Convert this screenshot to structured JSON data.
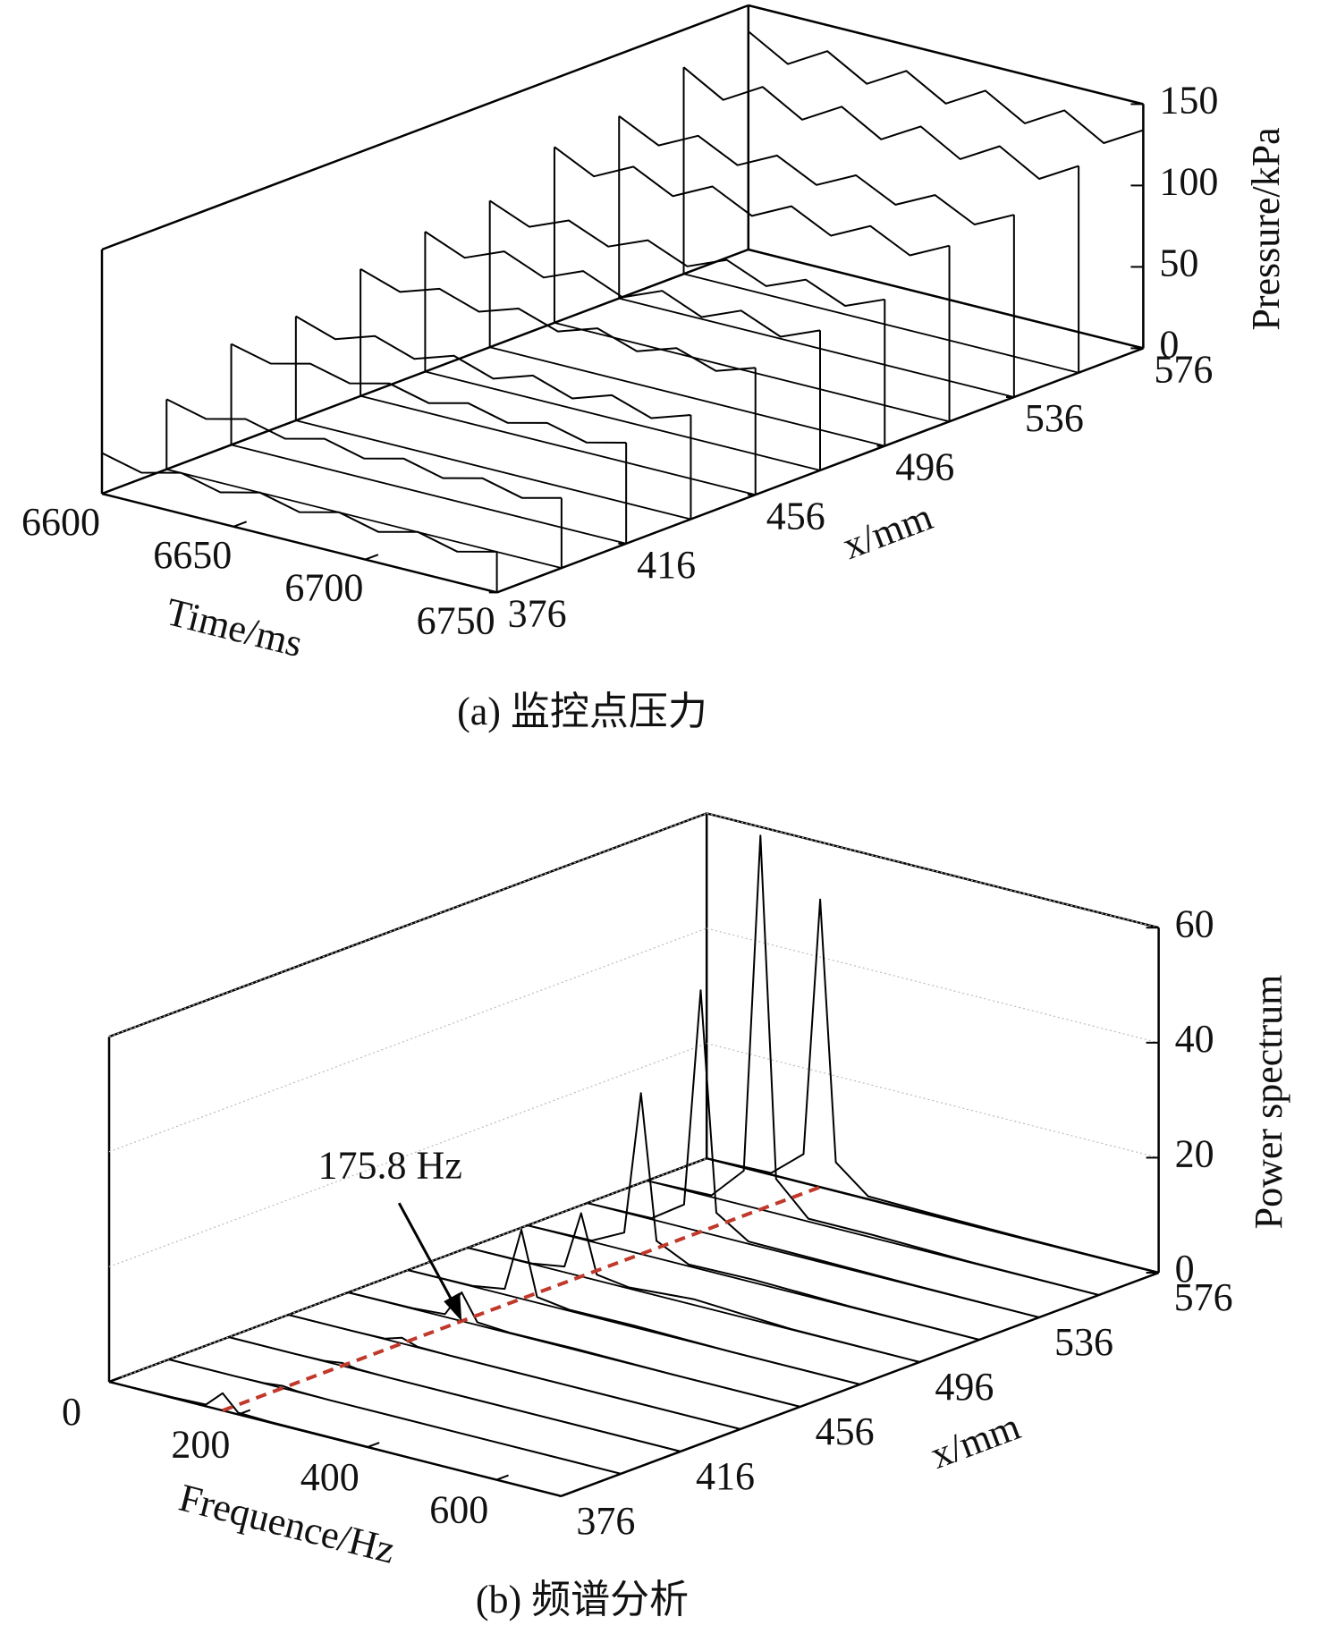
{
  "chart_data": [
    {
      "type": "waterfall",
      "title": "(a) 监控点压力",
      "xlabel": "Time/ms",
      "ylabel": "x/mm",
      "zlabel": "Pressure/kPa",
      "xlim": [
        6600,
        6750
      ],
      "xticks": [
        6600,
        6650,
        6700,
        6750
      ],
      "ylim": [
        376,
        576
      ],
      "yticks": [
        376,
        416,
        456,
        496,
        536,
        576
      ],
      "zlim": [
        0,
        150
      ],
      "zticks": [
        0,
        50,
        100,
        150
      ],
      "grid": false,
      "color": "#000000",
      "x": [
        6600,
        6615,
        6630,
        6645,
        6660,
        6675,
        6690,
        6705,
        6720,
        6735,
        6750
      ],
      "series": [
        {
          "position": 376,
          "values": [
            25,
            19,
            25,
            19,
            25,
            19,
            25,
            19,
            25,
            19,
            25
          ]
        },
        {
          "position": 396,
          "values": [
            43,
            37,
            43,
            37,
            43,
            37,
            43,
            37,
            43,
            37,
            43
          ]
        },
        {
          "position": 416,
          "values": [
            62,
            56,
            62,
            56,
            62,
            56,
            62,
            56,
            62,
            56,
            62
          ]
        },
        {
          "position": 436,
          "values": [
            64,
            56,
            64,
            56,
            64,
            56,
            64,
            56,
            64,
            56,
            64
          ]
        },
        {
          "position": 456,
          "values": [
            78,
            70,
            78,
            70,
            78,
            70,
            78,
            70,
            78,
            70,
            78
          ]
        },
        {
          "position": 476,
          "values": [
            86,
            76,
            86,
            76,
            86,
            76,
            86,
            76,
            86,
            76,
            86
          ]
        },
        {
          "position": 496,
          "values": [
            90,
            80,
            90,
            80,
            90,
            80,
            90,
            80,
            90,
            80,
            90
          ]
        },
        {
          "position": 516,
          "values": [
            108,
            96,
            108,
            96,
            108,
            96,
            108,
            96,
            108,
            96,
            108
          ]
        },
        {
          "position": 536,
          "values": [
            112,
            100,
            112,
            100,
            112,
            100,
            112,
            100,
            112,
            100,
            112
          ]
        },
        {
          "position": 556,
          "values": [
            127,
            113,
            127,
            113,
            127,
            113,
            127,
            113,
            127,
            113,
            127
          ]
        },
        {
          "position": 576,
          "values": [
            134,
            120,
            134,
            120,
            134,
            120,
            134,
            120,
            134,
            120,
            134
          ]
        }
      ]
    },
    {
      "type": "waterfall",
      "title": "(b) 频谱分析",
      "xlabel": "Frequence/Hz",
      "ylabel": "x/mm",
      "zlabel": "Power spectrum",
      "xlim": [
        0,
        700
      ],
      "xticks": [
        0,
        200,
        400,
        600
      ],
      "ylim": [
        376,
        576
      ],
      "yticks": [
        376,
        416,
        456,
        496,
        536,
        576
      ],
      "zlim": [
        0,
        60
      ],
      "zticks": [
        0,
        20,
        40,
        60
      ],
      "grid": true,
      "color": "#000000",
      "annotation": {
        "text": "175.8 Hz",
        "frequency": 175.8,
        "color": "#c0392b"
      },
      "x": [
        0,
        100,
        150,
        175.8,
        200,
        250,
        350,
        500,
        700
      ],
      "series": [
        {
          "position": 376,
          "values": [
            0,
            0.1,
            0.3,
            3,
            0.3,
            0.1,
            0.1,
            0,
            0
          ]
        },
        {
          "position": 396,
          "values": [
            0,
            0,
            0.1,
            0.4,
            0.1,
            0,
            0,
            0,
            0
          ]
        },
        {
          "position": 416,
          "values": [
            0,
            0,
            0.1,
            0.5,
            0.1,
            0,
            0,
            0,
            0
          ]
        },
        {
          "position": 436,
          "values": [
            0,
            0,
            0.1,
            1,
            0.1,
            0,
            0,
            0,
            0
          ]
        },
        {
          "position": 456,
          "values": [
            0,
            0.1,
            0.5,
            5,
            0.5,
            0.1,
            0.2,
            0,
            0
          ]
        },
        {
          "position": 476,
          "values": [
            0,
            0.1,
            1,
            12,
            1,
            0.2,
            0.3,
            0,
            0
          ]
        },
        {
          "position": 496,
          "values": [
            0,
            0.1,
            1,
            11,
            1,
            0.2,
            1,
            0.1,
            0
          ]
        },
        {
          "position": 516,
          "values": [
            0,
            0.2,
            3,
            28,
            3,
            0.3,
            0.5,
            0.1,
            0
          ]
        },
        {
          "position": 536,
          "values": [
            0,
            0.2,
            4,
            42,
            4,
            0.4,
            0.3,
            0.1,
            0
          ]
        },
        {
          "position": 556,
          "values": [
            0,
            0.3,
            6,
            65,
            6,
            0.5,
            0.5,
            0.1,
            0
          ]
        },
        {
          "position": 576,
          "values": [
            0,
            0.3,
            5,
            50,
            5,
            0.5,
            0.3,
            0.1,
            0
          ]
        }
      ]
    }
  ]
}
